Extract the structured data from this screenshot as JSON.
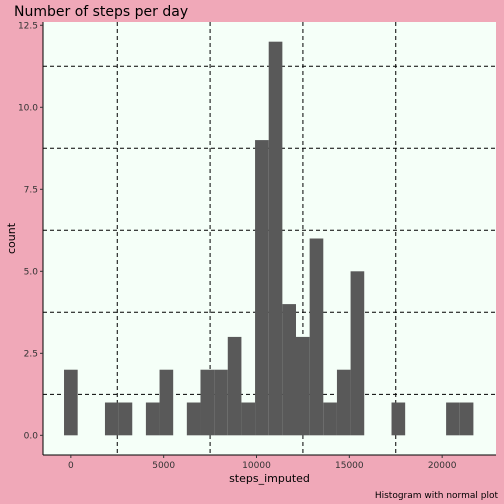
{
  "chart_data": {
    "type": "bar",
    "title": "Number of steps per day",
    "xlabel": "steps_imputed",
    "ylabel": "count",
    "caption": "Histogram with normal plot",
    "xlim": [
      -1500,
      22900
    ],
    "ylim": [
      -0.6,
      12.6
    ],
    "x_ticks": [
      0,
      5000,
      10000,
      15000,
      20000
    ],
    "x_tick_labels": [
      "0",
      "5000",
      "10000",
      "15000",
      "20000"
    ],
    "y_ticks": [
      0,
      2.5,
      5,
      7.5,
      10,
      12.5
    ],
    "y_tick_labels": [
      "0.0",
      "2.5",
      "5.0",
      "7.5",
      "10.0",
      "12.5"
    ],
    "grid": "dashed-major-and-minor",
    "bin_width": 735,
    "bins": [
      {
        "x": 0,
        "count": 2
      },
      {
        "x": 735,
        "count": 0
      },
      {
        "x": 1470,
        "count": 0
      },
      {
        "x": 2205,
        "count": 1
      },
      {
        "x": 2940,
        "count": 1
      },
      {
        "x": 3675,
        "count": 0
      },
      {
        "x": 4410,
        "count": 1
      },
      {
        "x": 5145,
        "count": 2
      },
      {
        "x": 5880,
        "count": 0
      },
      {
        "x": 6615,
        "count": 1
      },
      {
        "x": 7350,
        "count": 2
      },
      {
        "x": 8085,
        "count": 2
      },
      {
        "x": 8820,
        "count": 3
      },
      {
        "x": 9555,
        "count": 1
      },
      {
        "x": 10290,
        "count": 9
      },
      {
        "x": 11025,
        "count": 12
      },
      {
        "x": 11760,
        "count": 4
      },
      {
        "x": 12495,
        "count": 3
      },
      {
        "x": 13230,
        "count": 6
      },
      {
        "x": 13965,
        "count": 1
      },
      {
        "x": 14700,
        "count": 2
      },
      {
        "x": 15435,
        "count": 5
      },
      {
        "x": 16170,
        "count": 0
      },
      {
        "x": 16905,
        "count": 0
      },
      {
        "x": 17640,
        "count": 1
      },
      {
        "x": 18375,
        "count": 0
      },
      {
        "x": 19110,
        "count": 0
      },
      {
        "x": 19845,
        "count": 0
      },
      {
        "x": 20580,
        "count": 1
      },
      {
        "x": 21315,
        "count": 1
      }
    ],
    "colors": {
      "background": "#f0a8b8",
      "panel": "#f5fff8",
      "bar": "#595959",
      "grid": "#000000"
    }
  }
}
